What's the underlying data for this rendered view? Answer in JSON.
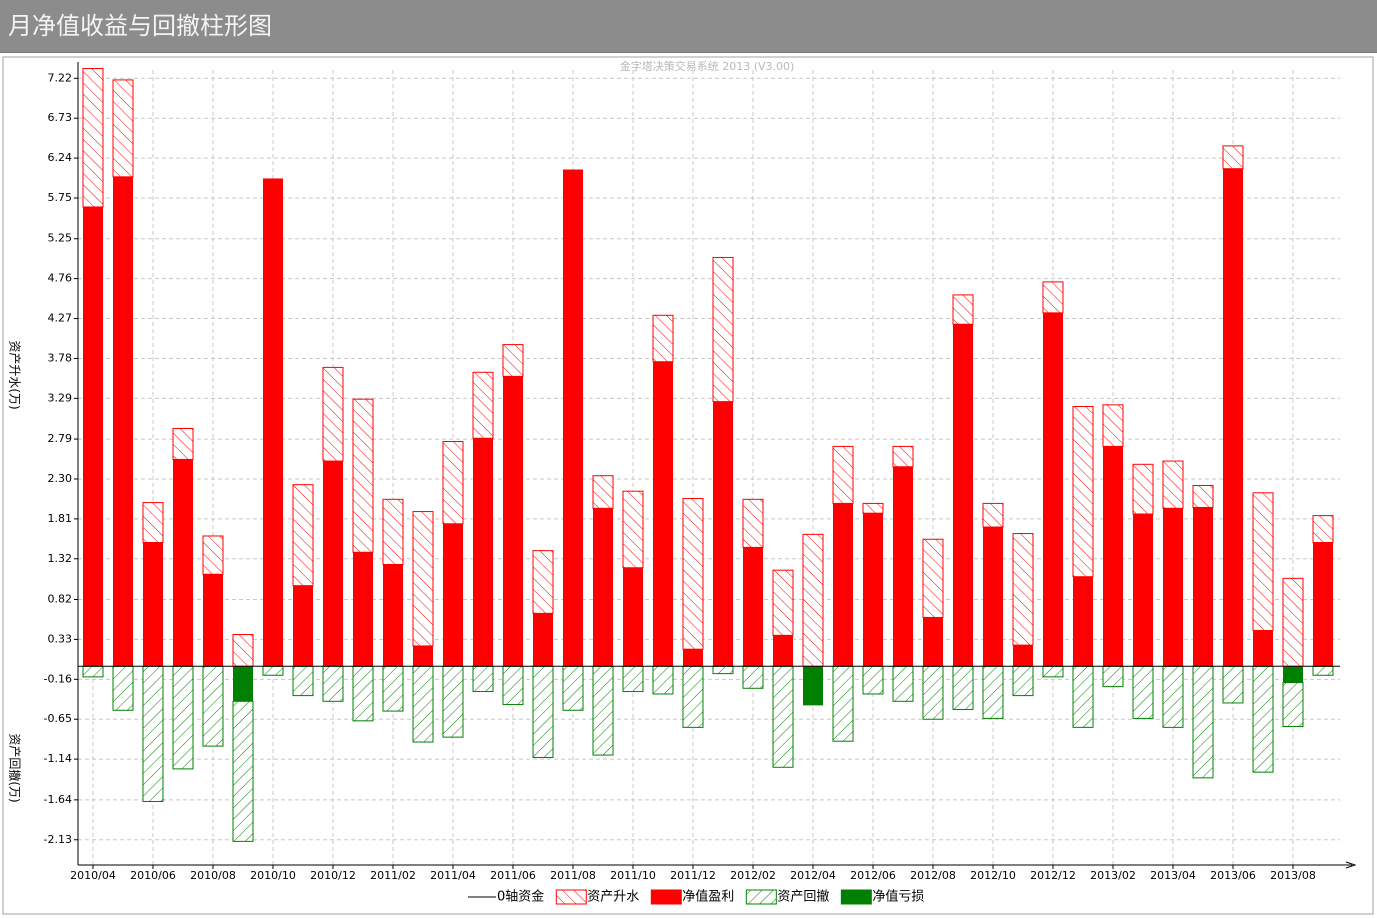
{
  "header": {
    "title": "月净值收益与回撤柱形图"
  },
  "chart_data": {
    "type": "bar",
    "subtitle": "金字塔决策交易系统 2013 (V3.00)",
    "ylabel": "资产升水(万)",
    "ylabel_lower": "资产回撤(万)",
    "zero_line_label": "0轴资金",
    "categories": [
      "2010/04",
      null,
      "2010/06",
      null,
      "2010/08",
      null,
      "2010/10",
      null,
      "2010/12",
      null,
      "2011/02",
      null,
      "2011/04",
      null,
      "2011/06",
      null,
      "2011/08",
      null,
      "2011/10",
      null,
      "2011/12",
      null,
      "2012/02",
      null,
      "2012/04",
      null,
      "2012/06",
      null,
      "2012/08",
      null,
      "2012/10",
      null,
      "2012/12",
      null,
      "2013/02",
      null,
      "2013/04",
      null,
      "2013/06",
      null,
      "2013/08",
      null
    ],
    "series": [
      {
        "name": "资产升水",
        "color": "#ff0000",
        "pattern": "hatch",
        "values": [
          1.7,
          1.19,
          0.49,
          0.38,
          0.47,
          0.39,
          null,
          1.24,
          1.15,
          1.88,
          0.8,
          1.65,
          1.01,
          0.81,
          0.39,
          0.77,
          null,
          0.4,
          0.94,
          0.57,
          1.85,
          1.77,
          0.59,
          0.8,
          1.62,
          0.7,
          0.12,
          0.25,
          0.96,
          0.36,
          0.29,
          1.37,
          0.38,
          2.09,
          0.51,
          0.61,
          0.58,
          0.27,
          0.28,
          1.69,
          1.08,
          0.33
        ]
      },
      {
        "name": "净值盈利",
        "color": "#ff0000",
        "pattern": "solid",
        "values": [
          5.64,
          6.01,
          1.52,
          2.54,
          1.13,
          null,
          5.99,
          0.99,
          2.52,
          1.4,
          1.25,
          0.25,
          1.75,
          2.8,
          3.56,
          0.65,
          6.1,
          1.94,
          1.21,
          3.74,
          0.21,
          3.25,
          1.46,
          0.38,
          null,
          2.0,
          1.88,
          2.45,
          0.6,
          4.2,
          1.71,
          0.26,
          4.34,
          1.1,
          2.7,
          1.87,
          1.94,
          1.95,
          6.11,
          0.44,
          null,
          1.52
        ]
      },
      {
        "name": "资产回撤",
        "color": "#008000",
        "pattern": "hatch",
        "values": [
          -0.13,
          -0.54,
          -1.66,
          -1.26,
          -0.98,
          -1.72,
          -0.11,
          -0.36,
          -0.43,
          -0.67,
          -0.55,
          -0.93,
          -0.87,
          -0.31,
          -0.47,
          -1.12,
          -0.54,
          -1.09,
          -0.31,
          -0.34,
          -0.75,
          -0.09,
          -0.27,
          -1.24,
          null,
          -0.92,
          -0.34,
          -0.43,
          -0.65,
          -0.53,
          -0.64,
          -0.36,
          -0.13,
          -0.75,
          -0.25,
          -0.64,
          -0.75,
          -1.37,
          -0.45,
          -1.3,
          -0.54,
          -0.11
        ]
      },
      {
        "name": "净值亏损",
        "color": "#008000",
        "pattern": "solid",
        "values": [
          null,
          null,
          null,
          null,
          null,
          -0.43,
          null,
          null,
          null,
          null,
          null,
          null,
          null,
          null,
          null,
          null,
          null,
          null,
          null,
          null,
          null,
          null,
          null,
          null,
          -0.48,
          null,
          null,
          null,
          null,
          null,
          null,
          null,
          null,
          null,
          null,
          null,
          null,
          null,
          null,
          null,
          -0.2,
          null
        ]
      }
    ],
    "ylim": [
      -2.44,
      7.42
    ],
    "yticks": [
      7.22,
      6.73,
      6.24,
      5.75,
      5.25,
      4.76,
      4.27,
      3.78,
      3.29,
      2.79,
      {
        "value": 2.3,
        "label": "2.30"
      },
      1.81,
      1.32,
      0.82,
      0.33,
      -0.16,
      -0.65,
      -1.14,
      -1.64,
      -2.13
    ],
    "grid": true
  }
}
